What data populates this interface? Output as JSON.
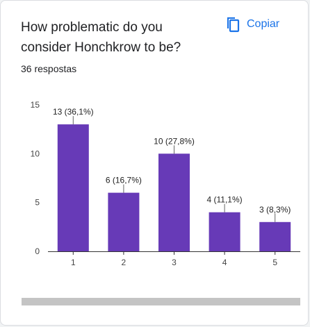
{
  "question": {
    "title": "How problematic do you consider Honchkrow to be?",
    "response_count": "36 respostas"
  },
  "copy_button": {
    "label": "Copiar",
    "icon": "copy-icon"
  },
  "colors": {
    "bar": "#673ab7",
    "accent": "#1a73e8"
  },
  "chart_data": {
    "type": "bar",
    "categories": [
      "1",
      "2",
      "3",
      "4",
      "5"
    ],
    "values": [
      13,
      6,
      10,
      4,
      3
    ],
    "data_labels": [
      "13 (36,1%)",
      "6 (16,7%)",
      "10 (27,8%)",
      "4 (11,1%)",
      "3 (8,3%)"
    ],
    "y_ticks": [
      0,
      5,
      10,
      15
    ],
    "ylim": [
      0,
      15
    ],
    "grid": false,
    "legend": "none"
  }
}
